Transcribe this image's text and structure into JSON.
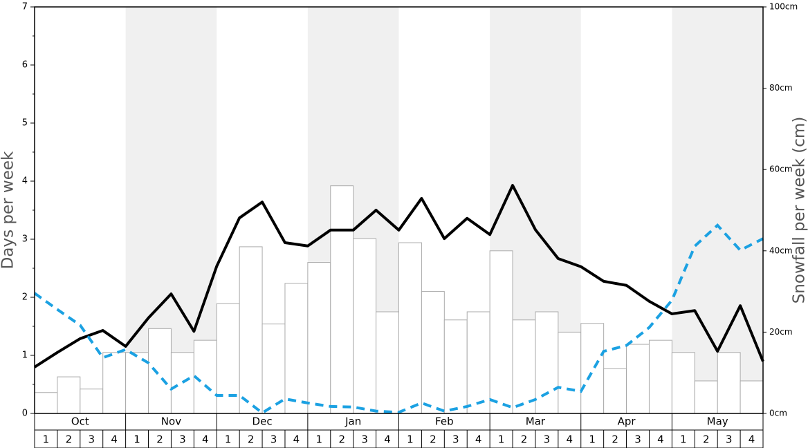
{
  "chart_data": {
    "type": "bar",
    "y_label": "Days per week",
    "y2_label": "Snowfall per week (cm)",
    "groups": [
      "Oct",
      "Nov",
      "Dec",
      "Jan",
      "Feb",
      "Mar",
      "Apr",
      "May"
    ],
    "categories": [
      "1",
      "2",
      "3",
      "4",
      "1",
      "2",
      "3",
      "4",
      "1",
      "2",
      "3",
      "4",
      "1",
      "2",
      "3",
      "4",
      "1",
      "2",
      "3",
      "4",
      "1",
      "2",
      "3",
      "4",
      "1",
      "2",
      "3",
      "4",
      "1",
      "2",
      "3",
      "4"
    ],
    "ylim": [
      0,
      7
    ],
    "yticks": [
      0,
      1,
      2,
      3,
      4,
      5,
      6,
      7
    ],
    "y2lim": [
      0,
      100
    ],
    "y2ticks": [
      {
        "value": 0,
        "label": "0cm"
      },
      {
        "value": 20,
        "label": "20cm"
      },
      {
        "value": 40,
        "label": "40cm"
      },
      {
        "value": 60,
        "label": "60cm"
      },
      {
        "value": 80,
        "label": "80cm"
      },
      {
        "value": 100,
        "label": "100cm"
      }
    ],
    "xlim": [
      0,
      32
    ],
    "series": [
      {
        "type": "bar",
        "color": "#ffffff",
        "values": [
          0.36,
          0.63,
          0.42,
          1.05,
          1.05,
          1.46,
          1.05,
          1.26,
          1.89,
          2.87,
          1.54,
          2.24,
          2.6,
          3.92,
          3.01,
          1.75,
          2.94,
          2.1,
          1.61,
          1.75,
          2.8,
          1.61,
          1.75,
          1.4,
          1.55,
          0.77,
          1.19,
          1.26,
          1.05,
          0.56,
          1.05,
          0.56
        ]
      },
      {
        "type": "line",
        "axis": "y2",
        "color": "#000000",
        "dashed": false,
        "x": [
          0,
          1,
          2,
          3,
          4,
          5,
          6,
          7,
          8,
          9,
          10,
          11,
          12,
          13,
          14,
          15,
          16,
          17,
          18,
          19,
          20,
          21,
          22,
          23,
          24,
          25,
          26,
          27,
          28,
          29,
          30,
          31,
          32
        ],
        "values": [
          11.4,
          15.0,
          18.4,
          20.4,
          16.5,
          23.5,
          29.4,
          20.2,
          36.2,
          48.1,
          52.0,
          42.0,
          41.2,
          45.1,
          45.1,
          50.0,
          45.1,
          52.9,
          43.0,
          48.0,
          44.0,
          56.1,
          45.2,
          38.1,
          36.1,
          32.5,
          31.5,
          27.6,
          24.5,
          25.3,
          15.3,
          26.5,
          12.8
        ]
      },
      {
        "type": "line",
        "color": "#1ba1e2",
        "dashed": true,
        "x": [
          0,
          1,
          2,
          3,
          4,
          5,
          6,
          7,
          8,
          9,
          10,
          11,
          12,
          13,
          14,
          15,
          16,
          17,
          18,
          19,
          20,
          21,
          22,
          23,
          24,
          25,
          26,
          27,
          28,
          29,
          30,
          31,
          32
        ],
        "values": [
          2.07,
          1.79,
          1.52,
          0.96,
          1.1,
          0.87,
          0.42,
          0.65,
          0.31,
          0.31,
          0.01,
          0.25,
          0.18,
          0.12,
          0.11,
          0.04,
          0.02,
          0.18,
          0.04,
          0.12,
          0.24,
          0.1,
          0.24,
          0.45,
          0.38,
          1.07,
          1.17,
          1.48,
          1.95,
          2.88,
          3.24,
          2.81,
          3.01
        ]
      }
    ]
  }
}
